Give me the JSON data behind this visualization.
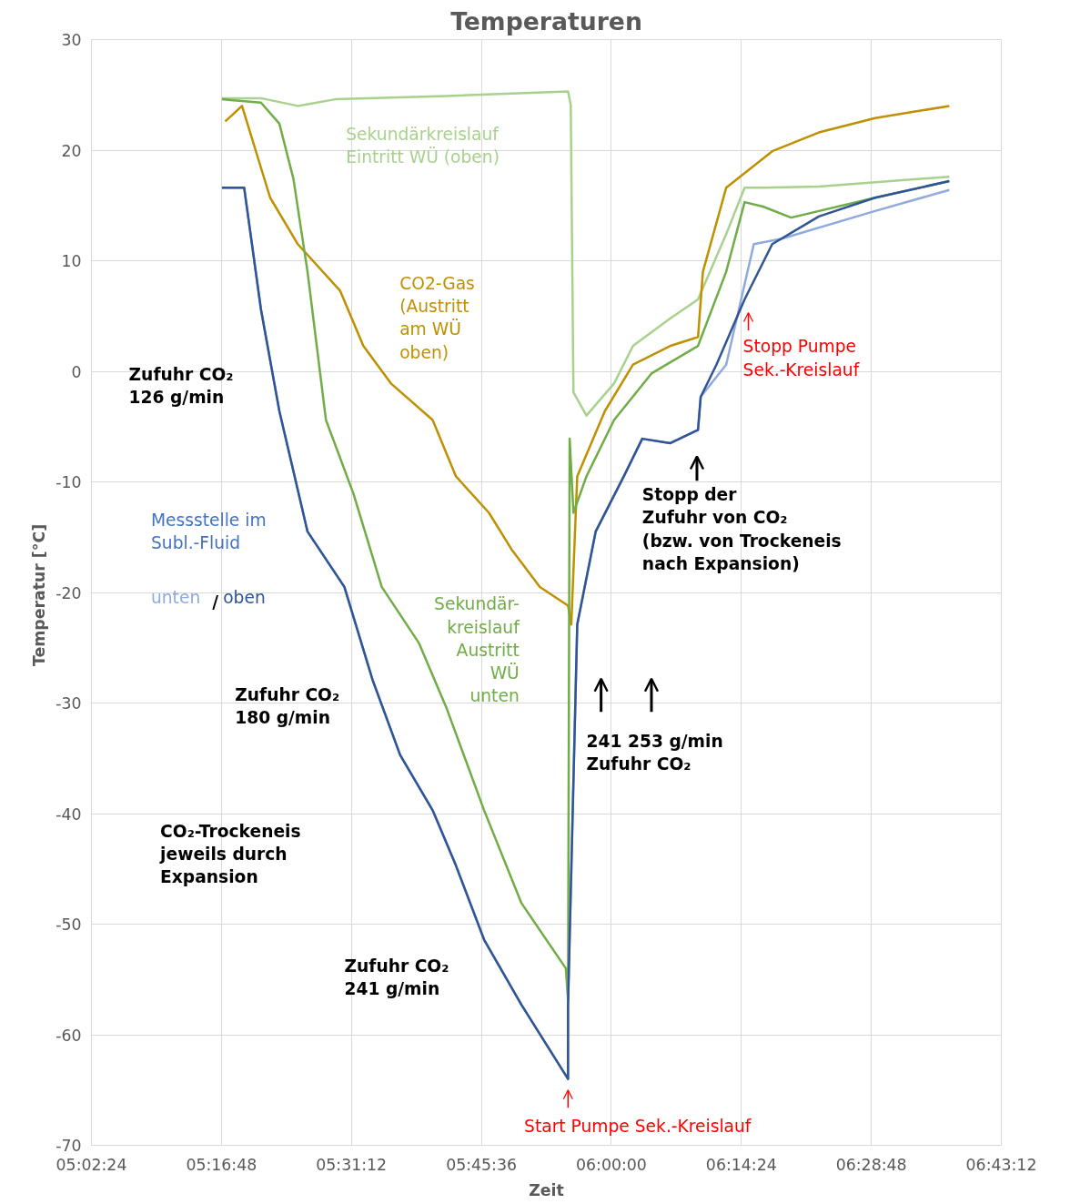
{
  "chart_data": {
    "type": "line",
    "title": "Temperaturen",
    "xlabel": "Zeit",
    "ylabel": "Temperatur  [°C]",
    "xlim": [
      5.04,
      6.72
    ],
    "ylim": [
      -70,
      30
    ],
    "xticks": [
      {
        "value": 5.04,
        "label": "05:02:24"
      },
      {
        "value": 5.28,
        "label": "05:16:48"
      },
      {
        "value": 5.52,
        "label": "05:31:12"
      },
      {
        "value": 5.76,
        "label": "05:45:36"
      },
      {
        "value": 6.0,
        "label": "06:00:00"
      },
      {
        "value": 6.24,
        "label": "06:14:24"
      },
      {
        "value": 6.48,
        "label": "06:28:48"
      },
      {
        "value": 6.72,
        "label": "06:43:12"
      }
    ],
    "yticks": [
      -70,
      -60,
      -50,
      -40,
      -30,
      -20,
      -10,
      0,
      10,
      20,
      30
    ],
    "grid": true,
    "legend": false,
    "marker": "none",
    "line_style": "solid",
    "series": [
      {
        "name": "Sekundärkreislauf\nEintritt WÜ (oben)",
        "color": "#a9d18e",
        "x": [
          5.281,
          5.353,
          5.421,
          5.49,
          5.696,
          5.92,
          5.925,
          5.93,
          5.954,
          6.005,
          6.04,
          6.109,
          6.16,
          6.212,
          6.246,
          6.28,
          6.383,
          6.624
        ],
        "values": [
          24.7,
          24.7,
          24.0,
          24.6,
          24.9,
          25.3,
          24.1,
          -1.9,
          -4.0,
          -1.1,
          2.3,
          4.8,
          6.5,
          12.4,
          16.6,
          16.6,
          16.7,
          17.6
        ]
      },
      {
        "name": "CO2-Gas\n(Austritt\nam WÜ\noben)",
        "color": "#bf9000",
        "x": [
          5.287,
          5.318,
          5.37,
          5.421,
          5.499,
          5.542,
          5.593,
          5.67,
          5.713,
          5.774,
          5.817,
          5.868,
          5.92,
          5.926,
          5.937,
          5.988,
          6.04,
          6.109,
          6.16,
          6.169,
          6.212,
          6.297,
          6.383,
          6.487,
          6.624
        ],
        "values": [
          22.6,
          24.0,
          15.7,
          11.5,
          7.3,
          2.3,
          -1.1,
          -4.4,
          -9.5,
          -12.8,
          -16.2,
          -19.5,
          -21.2,
          -22.9,
          -9.5,
          -3.6,
          0.6,
          2.3,
          3.1,
          9.0,
          16.6,
          19.9,
          21.6,
          22.9,
          24.0
        ]
      },
      {
        "name": "Sekundär-\nkreislauf\nAustritt\nWÜ\nunten",
        "color": "#70ad47",
        "x": [
          5.281,
          5.353,
          5.387,
          5.413,
          5.439,
          5.473,
          5.524,
          5.576,
          5.645,
          5.696,
          5.765,
          5.834,
          5.916,
          5.92,
          5.923,
          5.93,
          5.954,
          6.005,
          6.074,
          6.16,
          6.212,
          6.246,
          6.28,
          6.332,
          6.487,
          6.624
        ],
        "values": [
          24.6,
          24.3,
          22.4,
          17.4,
          9.0,
          -4.4,
          -11.1,
          -19.5,
          -24.6,
          -30.5,
          -39.7,
          -48.1,
          -54.0,
          -56.9,
          -6.1,
          -12.8,
          -9.5,
          -4.4,
          -0.2,
          2.3,
          9.0,
          15.3,
          14.9,
          13.9,
          15.7,
          17.2
        ]
      },
      {
        "name": "unten",
        "color": "#8faadc",
        "x": [
          5.281,
          5.322,
          5.353,
          5.387,
          5.439,
          5.507,
          5.559,
          5.61,
          5.67,
          5.713,
          5.765,
          5.834,
          5.92,
          5.92,
          5.937,
          5.971,
          6.023,
          6.057,
          6.109,
          6.16,
          6.165,
          6.212,
          6.263,
          6.315,
          6.487,
          6.624
        ],
        "values": [
          16.6,
          16.6,
          5.6,
          -3.6,
          -14.5,
          -19.5,
          -27.9,
          -34.7,
          -39.7,
          -44.7,
          -51.4,
          -57.3,
          -64.0,
          -57.3,
          -22.9,
          -14.5,
          -9.5,
          -6.1,
          -6.5,
          -5.3,
          -2.3,
          0.6,
          11.5,
          12.0,
          14.5,
          16.4
        ]
      },
      {
        "name": "oben",
        "color": "#2f5597",
        "x": [
          5.281,
          5.322,
          5.353,
          5.387,
          5.439,
          5.507,
          5.559,
          5.61,
          5.67,
          5.713,
          5.765,
          5.834,
          5.92,
          5.92,
          5.937,
          5.971,
          6.023,
          6.057,
          6.109,
          6.16,
          6.165,
          6.194,
          6.246,
          6.297,
          6.383,
          6.487,
          6.624
        ],
        "values": [
          16.6,
          16.6,
          5.6,
          -3.6,
          -14.5,
          -19.5,
          -27.9,
          -34.7,
          -39.7,
          -44.7,
          -51.4,
          -57.3,
          -64.0,
          -57.3,
          -22.9,
          -14.5,
          -9.5,
          -6.1,
          -6.5,
          -5.3,
          -2.3,
          0.6,
          6.5,
          11.5,
          14.0,
          15.7,
          17.2
        ]
      }
    ],
    "annotations": [
      "Zufuhr  CO₂\n126 g/min",
      "Zufuhr  CO₂\n180 g/min",
      "CO₂-Trockeneis\njeweils durch\nExpansion",
      "Zufuhr  CO₂\n241 g/min",
      "Stopp der\nZufuhr von CO₂\n(bzw.  von Trockeneis\nnach Expansion)",
      "241  253 g/min\n    Zufuhr  CO₂",
      "Stopp Pumpe\nSek.-Kreislauf",
      "Start Pumpe Sek.-Kreislauf",
      "Messstelle im\nSubl.-Fluid",
      "/"
    ]
  }
}
